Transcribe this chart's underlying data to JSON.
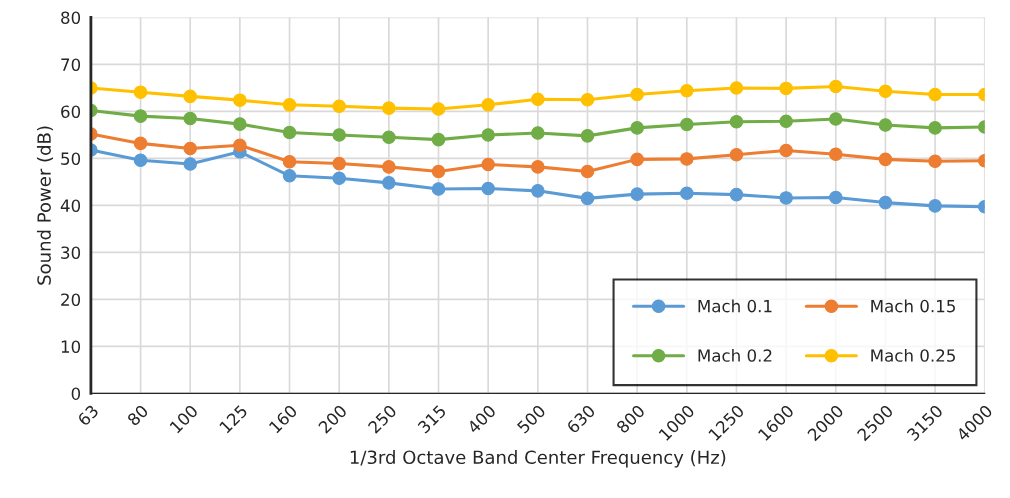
{
  "chart_data": {
    "type": "line",
    "xlabel": "1/3rd Octave Band Center Frequency (Hz)",
    "ylabel": "Sound Power (dB)",
    "categories": [
      "63",
      "80",
      "100",
      "125",
      "160",
      "200",
      "250",
      "315",
      "400",
      "500",
      "630",
      "800",
      "1000",
      "1250",
      "1600",
      "2000",
      "2500",
      "3150",
      "4000"
    ],
    "series": [
      {
        "name": "Mach 0.1",
        "color": "#5b9bd5",
        "values": [
          51.8,
          49.6,
          48.8,
          51.4,
          46.3,
          45.8,
          44.8,
          43.5,
          43.6,
          43.1,
          41.5,
          42.4,
          42.6,
          42.3,
          41.6,
          41.7,
          40.6,
          39.9,
          39.7
        ]
      },
      {
        "name": "Mach 0.15",
        "color": "#ed7d31",
        "values": [
          55.2,
          53.2,
          52.1,
          52.8,
          49.3,
          48.9,
          48.2,
          47.2,
          48.7,
          48.2,
          47.2,
          49.8,
          49.9,
          50.8,
          51.7,
          50.9,
          49.8,
          49.4,
          49.5
        ]
      },
      {
        "name": "Mach 0.2",
        "color": "#70ad47",
        "values": [
          60.2,
          59.0,
          58.5,
          57.3,
          55.5,
          55.0,
          54.5,
          54.0,
          55.0,
          55.4,
          54.8,
          56.5,
          57.2,
          57.8,
          57.9,
          58.4,
          57.1,
          56.5,
          56.7
        ]
      },
      {
        "name": "Mach 0.25",
        "color": "#ffc000",
        "values": [
          65.0,
          64.1,
          63.2,
          62.4,
          61.4,
          61.1,
          60.7,
          60.5,
          61.4,
          62.6,
          62.5,
          63.6,
          64.4,
          65.0,
          64.9,
          65.3,
          64.3,
          63.6,
          63.6
        ]
      }
    ],
    "ylim": [
      0,
      80
    ],
    "yticks": [
      0,
      10,
      20,
      30,
      40,
      50,
      60,
      70,
      80
    ],
    "grid": true,
    "legend": "bottom right",
    "marker": "circle",
    "line_style": "solid"
  }
}
